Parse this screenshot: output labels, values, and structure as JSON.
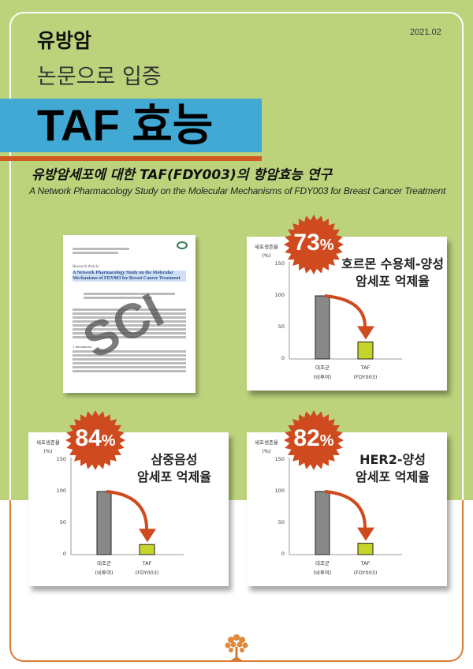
{
  "header": {
    "category": "유방암",
    "date": "2021.02",
    "line2": "논문으로 입증",
    "headline": "TAF 효능"
  },
  "study": {
    "title_ko": "유방암세포에 대한 TAF(FDY003)의 항암효능 연구",
    "title_en": "A Network Pharmacology Study on the Molecular Mechanisms of FDY003 for Breast Cancer Treatment"
  },
  "paper": {
    "label": "Research Article",
    "title": "A Network Pharmacology Study on the Molecular Mechanisms of FDY003 for Breast Cancer Treatment",
    "stamp": "SCI",
    "section": "1. Introduction"
  },
  "colors": {
    "green": "#bcd37c",
    "blue": "#42a8d4",
    "orange": "#cf4a1e",
    "control_bar": "#888888",
    "taf_bar": "#c5d42a"
  },
  "chart_data": [
    {
      "type": "bar",
      "title": "호르몬 수용체-양성 암세포 억제율",
      "badge": "73",
      "badge_unit": "%",
      "ylabel": "세포생존율",
      "yunit": "(%)",
      "yticks": [
        "150",
        "100",
        "50",
        "0"
      ],
      "ylim": [
        0,
        150
      ],
      "categories": [
        "대조군",
        "TAF"
      ],
      "category_sub": [
        "(비투여)",
        "(FDY003)"
      ],
      "values": [
        100,
        27
      ]
    },
    {
      "type": "bar",
      "title": "삼중음성 암세포 억제율",
      "badge": "84",
      "badge_unit": "%",
      "ylabel": "세포생존율",
      "yunit": "(%)",
      "yticks": [
        "150",
        "100",
        "50",
        "0"
      ],
      "ylim": [
        0,
        150
      ],
      "categories": [
        "대조군",
        "TAF"
      ],
      "category_sub": [
        "(비투여)",
        "(FDY003)"
      ],
      "values": [
        100,
        16
      ]
    },
    {
      "type": "bar",
      "title": "HER2-양성 암세포 억제율",
      "badge": "82",
      "badge_unit": "%",
      "ylabel": "세포생존율",
      "yunit": "(%)",
      "yticks": [
        "150",
        "100",
        "50",
        "0"
      ],
      "ylim": [
        0,
        150
      ],
      "categories": [
        "대조군",
        "TAF"
      ],
      "category_sub": [
        "(비투여)",
        "(FDY003)"
      ],
      "values": [
        100,
        18
      ]
    }
  ],
  "chart_titles": [
    [
      "호르몬 수용체-양성",
      "암세포 억제율"
    ],
    [
      "삼중음성",
      "암세포 억제율"
    ],
    [
      "HER2-양성",
      "암세포 억제율"
    ]
  ],
  "footer": {
    "icon": "tree-icon"
  }
}
